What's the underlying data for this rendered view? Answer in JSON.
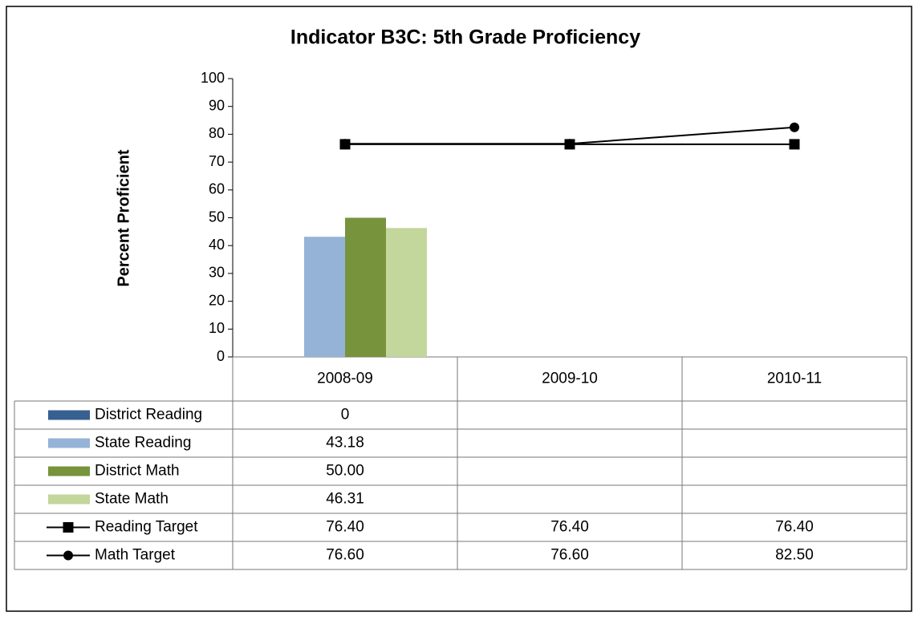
{
  "chart_data": {
    "type": "bar",
    "title": "Indicator B3C: 5th Grade Proficiency",
    "y_label": "Percent Proficient",
    "categories": [
      "2008-09",
      "2009-10",
      "2010-11"
    ],
    "ylim": [
      0,
      100
    ],
    "yticks": [
      0,
      10,
      20,
      30,
      40,
      50,
      60,
      70,
      80,
      90,
      100
    ],
    "grid": false,
    "series": [
      {
        "name": "District Reading",
        "type": "bar",
        "color": "#376092",
        "values": [
          0,
          null,
          null
        ]
      },
      {
        "name": "State Reading",
        "type": "bar",
        "color": "#95b3d7",
        "values": [
          43.18,
          null,
          null
        ]
      },
      {
        "name": "District Math",
        "type": "bar",
        "color": "#77933c",
        "values": [
          50.0,
          null,
          null
        ],
        "value_labels": [
          "50.00",
          null,
          null
        ]
      },
      {
        "name": "State Math",
        "type": "bar",
        "color": "#c3d69b",
        "values": [
          46.31,
          null,
          null
        ]
      },
      {
        "name": "Reading Target",
        "type": "line",
        "marker": "square",
        "color": "#000000",
        "values": [
          76.4,
          76.4,
          76.4
        ],
        "value_labels": [
          "76.40",
          "76.40",
          "76.40"
        ]
      },
      {
        "name": "Math Target",
        "type": "line",
        "marker": "circle",
        "color": "#000000",
        "values": [
          76.6,
          76.6,
          82.5
        ],
        "value_labels": [
          "76.60",
          "76.60",
          "82.50"
        ]
      }
    ]
  }
}
